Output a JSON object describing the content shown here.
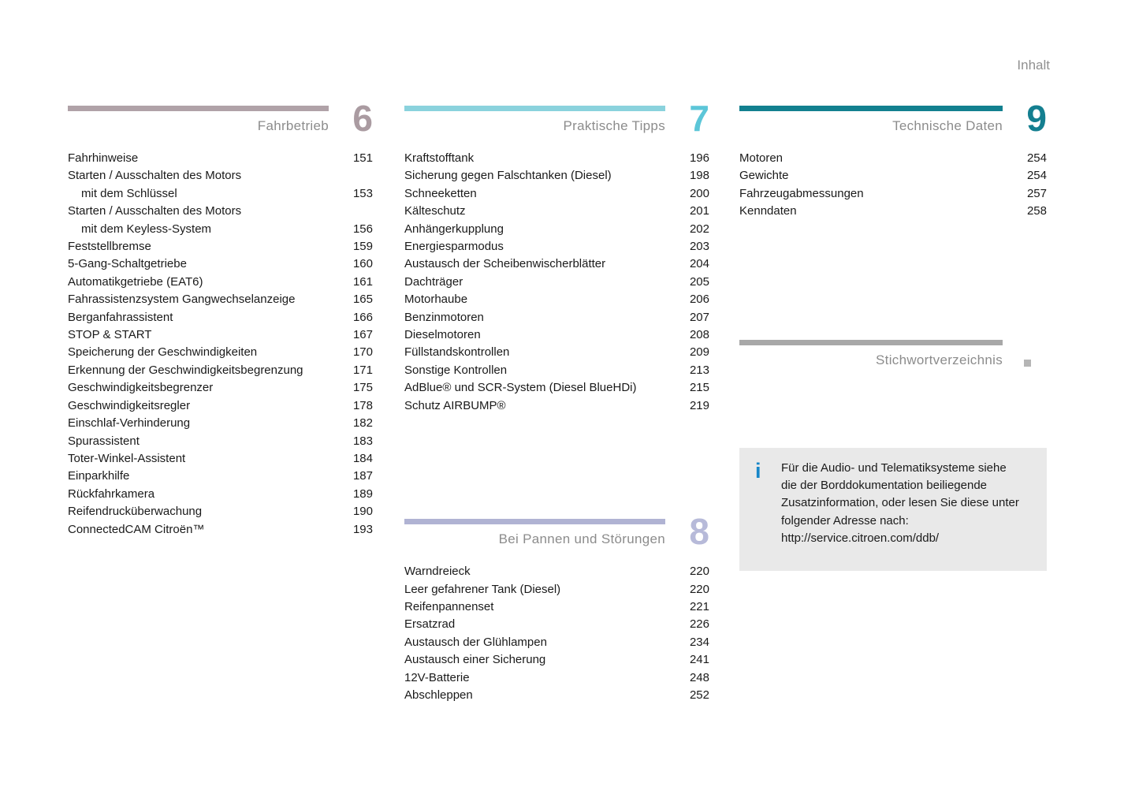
{
  "header": {
    "title": "Inhalt"
  },
  "sections": {
    "fahrbetrieb": {
      "number": "6",
      "title": "Fahrbetrieb",
      "colors": {
        "bar": "#b0a2a8",
        "number": "#aa9ba1"
      },
      "items": [
        {
          "lines": [
            "Fahrhinweise"
          ],
          "page": "151"
        },
        {
          "lines": [
            "Starten / Ausschalten des Motors",
            "mit dem Schlüssel"
          ],
          "page": "153"
        },
        {
          "lines": [
            "Starten / Ausschalten des Motors",
            "mit dem Keyless-System"
          ],
          "page": "156"
        },
        {
          "lines": [
            "Feststellbremse"
          ],
          "page": "159"
        },
        {
          "lines": [
            "5-Gang-Schaltgetriebe"
          ],
          "page": "160"
        },
        {
          "lines": [
            "Automatikgetriebe (EAT6)"
          ],
          "page": "161"
        },
        {
          "lines": [
            "Fahrassistenzsystem Gangwechselanzeige"
          ],
          "page": "165"
        },
        {
          "lines": [
            "Berganfahrassistent"
          ],
          "page": "166"
        },
        {
          "lines": [
            "STOP & START"
          ],
          "page": "167"
        },
        {
          "lines": [
            "Speicherung der Geschwindigkeiten"
          ],
          "page": "170"
        },
        {
          "lines": [
            "Erkennung der Geschwindigkeitsbegrenzung"
          ],
          "page": "171"
        },
        {
          "lines": [
            "Geschwindigkeitsbegrenzer"
          ],
          "page": "175"
        },
        {
          "lines": [
            "Geschwindigkeitsregler"
          ],
          "page": "178"
        },
        {
          "lines": [
            "Einschlaf-Verhinderung"
          ],
          "page": "182"
        },
        {
          "lines": [
            "Spurassistent"
          ],
          "page": "183"
        },
        {
          "lines": [
            "Toter-Winkel-Assistent"
          ],
          "page": "184"
        },
        {
          "lines": [
            "Einparkhilfe"
          ],
          "page": "187"
        },
        {
          "lines": [
            "Rückfahrkamera"
          ],
          "page": "189"
        },
        {
          "lines": [
            "Reifendrucküberwachung"
          ],
          "page": "190"
        },
        {
          "lines": [
            "ConnectedCAM Citroën™"
          ],
          "page": "193"
        }
      ]
    },
    "praktische_tipps": {
      "number": "7",
      "title": "Praktische Tipps",
      "colors": {
        "bar": "#8ad2dd",
        "number": "#5cc6d8"
      },
      "items": [
        {
          "lines": [
            "Kraftstofftank"
          ],
          "page": "196"
        },
        {
          "lines": [
            "Sicherung gegen Falschtanken (Diesel)"
          ],
          "page": "198"
        },
        {
          "lines": [
            "Schneeketten"
          ],
          "page": "200"
        },
        {
          "lines": [
            "Kälteschutz"
          ],
          "page": "201"
        },
        {
          "lines": [
            "Anhängerkupplung"
          ],
          "page": "202"
        },
        {
          "lines": [
            "Energiesparmodus"
          ],
          "page": "203"
        },
        {
          "lines": [
            "Austausch der Scheibenwischerblätter"
          ],
          "page": "204"
        },
        {
          "lines": [
            "Dachträger"
          ],
          "page": "205"
        },
        {
          "lines": [
            "Motorhaube"
          ],
          "page": "206"
        },
        {
          "lines": [
            "Benzinmotoren"
          ],
          "page": "207"
        },
        {
          "lines": [
            "Dieselmotoren"
          ],
          "page": "208"
        },
        {
          "lines": [
            "Füllstandskontrollen"
          ],
          "page": "209"
        },
        {
          "lines": [
            "Sonstige Kontrollen"
          ],
          "page": "213"
        },
        {
          "lines": [
            "AdBlue® und SCR-System (Diesel BlueHDi)"
          ],
          "page": "215"
        },
        {
          "lines": [
            "Schutz AIRBUMP®"
          ],
          "page": "219"
        }
      ]
    },
    "pannen": {
      "number": "8",
      "title": "Bei Pannen und Störungen",
      "colors": {
        "bar": "#b0b3d3",
        "number": "#b7bad9"
      },
      "items": [
        {
          "lines": [
            "Warndreieck"
          ],
          "page": "220"
        },
        {
          "lines": [
            "Leer gefahrener Tank (Diesel)"
          ],
          "page": "220"
        },
        {
          "lines": [
            "Reifenpannenset"
          ],
          "page": "221"
        },
        {
          "lines": [
            "Ersatzrad"
          ],
          "page": "226"
        },
        {
          "lines": [
            "Austausch der Glühlampen"
          ],
          "page": "234"
        },
        {
          "lines": [
            "Austausch einer Sicherung"
          ],
          "page": "241"
        },
        {
          "lines": [
            "12V-Batterie"
          ],
          "page": "248"
        },
        {
          "lines": [
            "Abschleppen"
          ],
          "page": "252"
        }
      ]
    },
    "technische_daten": {
      "number": "9",
      "title": "Technische Daten",
      "colors": {
        "bar": "#12808f",
        "number": "#147f90"
      },
      "items": [
        {
          "lines": [
            "Motoren"
          ],
          "page": "254"
        },
        {
          "lines": [
            "Gewichte"
          ],
          "page": "254"
        },
        {
          "lines": [
            "Fahrzeugabmessungen"
          ],
          "page": "257"
        },
        {
          "lines": [
            "Kenndaten"
          ],
          "page": "258"
        }
      ]
    }
  },
  "index_section": {
    "title": "Stichwortverzeichnis",
    "colors": {
      "bar": "#a8a8a8",
      "marker": "#b5b5b5"
    }
  },
  "info_box": {
    "icon": "i",
    "colors": {
      "icon": "#1786c8",
      "background": "#e9e9e9"
    },
    "lines": [
      "Für die Audio- und Telematiksysteme siehe",
      "die der Borddokumentation beiliegende",
      "Zusatzinformation, oder lesen Sie diese unter",
      "folgender Adresse nach:",
      "http://service.citroen.com/ddb/"
    ]
  }
}
